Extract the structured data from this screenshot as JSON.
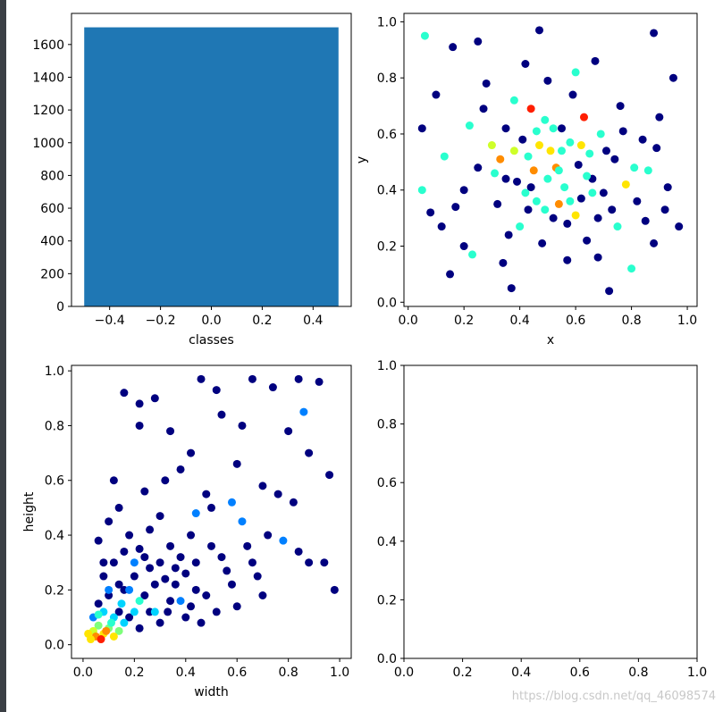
{
  "colors": {
    "bar": "#1f77b4",
    "scatter_palette": [
      "#00007f",
      "#0000ff",
      "#0080ff",
      "#00d4ff",
      "#29ffce",
      "#7dff7a",
      "#ceff29",
      "#ffe500",
      "#ff8c00",
      "#ff1e00",
      "#b20000"
    ]
  },
  "watermark": "https://blog.csdn.net/qq_46098574",
  "chart_data": [
    {
      "type": "bar",
      "categories": [
        0
      ],
      "values": [
        1705
      ],
      "xlabel": "classes",
      "ylabel": "",
      "xlim": [
        -0.55,
        0.55
      ],
      "ylim": [
        0,
        1790
      ],
      "xticks": [
        -0.4,
        -0.2,
        0.0,
        0.2,
        0.4
      ],
      "xtick_labels": [
        "−0.4",
        "−0.2",
        "0.0",
        "0.2",
        "0.4"
      ],
      "yticks": [
        0,
        200,
        400,
        600,
        800,
        1000,
        1200,
        1400,
        1600
      ],
      "ytick_labels": [
        "0",
        "200",
        "400",
        "600",
        "800",
        "1000",
        "1200",
        "1400",
        "1600"
      ],
      "grid": false
    },
    {
      "type": "scatter",
      "xlabel": "x",
      "ylabel": "y",
      "xlim": [
        -0.015,
        1.035
      ],
      "ylim": [
        -0.015,
        1.03
      ],
      "xticks": [
        0,
        0.2,
        0.4,
        0.6,
        0.8,
        1.0
      ],
      "xtick_labels": [
        "0.0",
        "0.2",
        "0.4",
        "0.6",
        "0.8",
        "1.0"
      ],
      "yticks": [
        0,
        0.2,
        0.4,
        0.6,
        0.8,
        1.0
      ],
      "ytick_labels": [
        "0.0",
        "0.2",
        "0.4",
        "0.6",
        "0.8",
        "1.0"
      ],
      "colormap": "jet",
      "points": [
        [
          0.06,
          0.95,
          4
        ],
        [
          0.16,
          0.91,
          0
        ],
        [
          0.25,
          0.93,
          0
        ],
        [
          0.47,
          0.97,
          0
        ],
        [
          0.88,
          0.96,
          0
        ],
        [
          0.05,
          0.62,
          0
        ],
        [
          0.05,
          0.4,
          4
        ],
        [
          0.08,
          0.32,
          0
        ],
        [
          0.12,
          0.27,
          0
        ],
        [
          0.15,
          0.1,
          0
        ],
        [
          0.2,
          0.2,
          0
        ],
        [
          0.2,
          0.4,
          0
        ],
        [
          0.22,
          0.63,
          4
        ],
        [
          0.25,
          0.48,
          0
        ],
        [
          0.28,
          0.78,
          0
        ],
        [
          0.3,
          0.56,
          6
        ],
        [
          0.32,
          0.35,
          0
        ],
        [
          0.33,
          0.51,
          8
        ],
        [
          0.34,
          0.14,
          0
        ],
        [
          0.35,
          0.62,
          0
        ],
        [
          0.37,
          0.05,
          0
        ],
        [
          0.38,
          0.72,
          4
        ],
        [
          0.39,
          0.43,
          0
        ],
        [
          0.4,
          0.27,
          4
        ],
        [
          0.41,
          0.58,
          0
        ],
        [
          0.42,
          0.85,
          0
        ],
        [
          0.43,
          0.33,
          0
        ],
        [
          0.44,
          0.69,
          9
        ],
        [
          0.45,
          0.47,
          8
        ],
        [
          0.46,
          0.36,
          4
        ],
        [
          0.47,
          0.56,
          7
        ],
        [
          0.48,
          0.21,
          0
        ],
        [
          0.49,
          0.65,
          4
        ],
        [
          0.5,
          0.44,
          4
        ],
        [
          0.5,
          0.79,
          0
        ],
        [
          0.51,
          0.54,
          7
        ],
        [
          0.52,
          0.3,
          0
        ],
        [
          0.53,
          0.48,
          8
        ],
        [
          0.54,
          0.35,
          8
        ],
        [
          0.55,
          0.62,
          0
        ],
        [
          0.56,
          0.41,
          4
        ],
        [
          0.57,
          0.15,
          0
        ],
        [
          0.58,
          0.57,
          4
        ],
        [
          0.59,
          0.74,
          0
        ],
        [
          0.6,
          0.31,
          7
        ],
        [
          0.61,
          0.49,
          0
        ],
        [
          0.62,
          0.37,
          0
        ],
        [
          0.63,
          0.66,
          9
        ],
        [
          0.64,
          0.22,
          0
        ],
        [
          0.65,
          0.53,
          4
        ],
        [
          0.66,
          0.44,
          0
        ],
        [
          0.67,
          0.86,
          0
        ],
        [
          0.68,
          0.3,
          0
        ],
        [
          0.69,
          0.6,
          4
        ],
        [
          0.7,
          0.39,
          0
        ],
        [
          0.72,
          0.04,
          0
        ],
        [
          0.74,
          0.51,
          0
        ],
        [
          0.75,
          0.27,
          4
        ],
        [
          0.76,
          0.7,
          0
        ],
        [
          0.78,
          0.42,
          7
        ],
        [
          0.8,
          0.12,
          4
        ],
        [
          0.82,
          0.36,
          0
        ],
        [
          0.84,
          0.58,
          0
        ],
        [
          0.86,
          0.47,
          4
        ],
        [
          0.88,
          0.21,
          0
        ],
        [
          0.9,
          0.66,
          0
        ],
        [
          0.92,
          0.33,
          0
        ],
        [
          0.95,
          0.8,
          0
        ],
        [
          0.97,
          0.27,
          0
        ],
        [
          0.1,
          0.74,
          0
        ],
        [
          0.13,
          0.52,
          4
        ],
        [
          0.17,
          0.34,
          0
        ],
        [
          0.23,
          0.17,
          4
        ],
        [
          0.27,
          0.69,
          0
        ],
        [
          0.31,
          0.46,
          4
        ],
        [
          0.36,
          0.24,
          0
        ],
        [
          0.44,
          0.41,
          0
        ],
        [
          0.52,
          0.62,
          4
        ],
        [
          0.57,
          0.28,
          0
        ],
        [
          0.6,
          0.82,
          4
        ],
        [
          0.64,
          0.45,
          4
        ],
        [
          0.68,
          0.16,
          0
        ],
        [
          0.71,
          0.54,
          0
        ],
        [
          0.73,
          0.33,
          0
        ],
        [
          0.77,
          0.61,
          0
        ],
        [
          0.81,
          0.48,
          4
        ],
        [
          0.85,
          0.29,
          0
        ],
        [
          0.89,
          0.55,
          0
        ],
        [
          0.93,
          0.41,
          0
        ],
        [
          0.38,
          0.54,
          6
        ],
        [
          0.42,
          0.39,
          4
        ],
        [
          0.46,
          0.61,
          4
        ],
        [
          0.54,
          0.47,
          4
        ],
        [
          0.58,
          0.36,
          4
        ],
        [
          0.62,
          0.56,
          7
        ],
        [
          0.49,
          0.33,
          4
        ],
        [
          0.43,
          0.52,
          4
        ],
        [
          0.55,
          0.54,
          4
        ],
        [
          0.35,
          0.44,
          0
        ],
        [
          0.66,
          0.39,
          4
        ]
      ]
    },
    {
      "type": "scatter",
      "xlabel": "width",
      "ylabel": "height",
      "xlim": [
        -0.045,
        1.045
      ],
      "ylim": [
        -0.05,
        1.02
      ],
      "xticks": [
        0,
        0.2,
        0.4,
        0.6,
        0.8,
        1.0
      ],
      "xtick_labels": [
        "0.0",
        "0.2",
        "0.4",
        "0.6",
        "0.8",
        "1.0"
      ],
      "yticks": [
        0,
        0.2,
        0.4,
        0.6,
        0.8,
        1.0
      ],
      "ytick_labels": [
        "0.0",
        "0.2",
        "0.4",
        "0.6",
        "0.8",
        "1.0"
      ],
      "colormap": "jet",
      "points": [
        [
          0.46,
          0.97,
          0
        ],
        [
          0.66,
          0.97,
          0
        ],
        [
          0.92,
          0.96,
          0
        ],
        [
          0.16,
          0.92,
          0
        ],
        [
          0.22,
          0.88,
          0
        ],
        [
          0.28,
          0.9,
          0
        ],
        [
          0.52,
          0.93,
          0
        ],
        [
          0.74,
          0.94,
          0
        ],
        [
          0.84,
          0.97,
          0
        ],
        [
          0.86,
          0.85,
          2
        ],
        [
          0.34,
          0.78,
          0
        ],
        [
          0.22,
          0.8,
          0
        ],
        [
          0.54,
          0.84,
          0
        ],
        [
          0.62,
          0.8,
          0
        ],
        [
          0.8,
          0.78,
          0
        ],
        [
          0.12,
          0.6,
          0
        ],
        [
          0.24,
          0.56,
          0
        ],
        [
          0.42,
          0.7,
          0
        ],
        [
          0.6,
          0.66,
          0
        ],
        [
          0.88,
          0.7,
          0
        ],
        [
          0.96,
          0.62,
          0
        ],
        [
          0.32,
          0.6,
          0
        ],
        [
          0.38,
          0.64,
          0
        ],
        [
          0.48,
          0.55,
          0
        ],
        [
          0.58,
          0.52,
          2
        ],
        [
          0.7,
          0.58,
          0
        ],
        [
          0.76,
          0.55,
          0
        ],
        [
          0.82,
          0.52,
          0
        ],
        [
          0.06,
          0.38,
          0
        ],
        [
          0.1,
          0.45,
          0
        ],
        [
          0.14,
          0.5,
          0
        ],
        [
          0.18,
          0.4,
          0
        ],
        [
          0.22,
          0.35,
          0
        ],
        [
          0.26,
          0.42,
          0
        ],
        [
          0.3,
          0.47,
          0
        ],
        [
          0.34,
          0.36,
          0
        ],
        [
          0.38,
          0.32,
          0
        ],
        [
          0.42,
          0.4,
          0
        ],
        [
          0.44,
          0.3,
          0
        ],
        [
          0.5,
          0.36,
          0
        ],
        [
          0.54,
          0.32,
          0
        ],
        [
          0.56,
          0.27,
          0
        ],
        [
          0.62,
          0.45,
          2
        ],
        [
          0.66,
          0.3,
          0
        ],
        [
          0.72,
          0.4,
          0
        ],
        [
          0.78,
          0.38,
          2
        ],
        [
          0.84,
          0.34,
          0
        ],
        [
          0.88,
          0.3,
          0
        ],
        [
          0.94,
          0.3,
          0
        ],
        [
          0.98,
          0.2,
          0
        ],
        [
          0.7,
          0.18,
          0
        ],
        [
          0.6,
          0.14,
          0
        ],
        [
          0.52,
          0.12,
          0
        ],
        [
          0.46,
          0.08,
          0
        ],
        [
          0.4,
          0.1,
          0
        ],
        [
          0.34,
          0.16,
          0
        ],
        [
          0.28,
          0.22,
          0
        ],
        [
          0.24,
          0.18,
          0
        ],
        [
          0.2,
          0.25,
          0
        ],
        [
          0.16,
          0.2,
          0
        ],
        [
          0.12,
          0.3,
          0
        ],
        [
          0.08,
          0.25,
          0
        ],
        [
          0.14,
          0.12,
          0
        ],
        [
          0.18,
          0.1,
          0
        ],
        [
          0.22,
          0.06,
          0
        ],
        [
          0.26,
          0.12,
          0
        ],
        [
          0.3,
          0.08,
          0
        ],
        [
          0.36,
          0.22,
          0
        ],
        [
          0.4,
          0.26,
          0
        ],
        [
          0.44,
          0.2,
          0
        ],
        [
          0.48,
          0.18,
          0
        ],
        [
          0.06,
          0.15,
          0
        ],
        [
          0.1,
          0.18,
          0
        ],
        [
          0.04,
          0.1,
          2
        ],
        [
          0.08,
          0.12,
          3
        ],
        [
          0.12,
          0.1,
          3
        ],
        [
          0.16,
          0.08,
          3
        ],
        [
          0.2,
          0.12,
          3
        ],
        [
          0.06,
          0.07,
          5
        ],
        [
          0.1,
          0.06,
          5
        ],
        [
          0.14,
          0.05,
          5
        ],
        [
          0.04,
          0.05,
          6
        ],
        [
          0.08,
          0.04,
          7
        ],
        [
          0.12,
          0.03,
          7
        ],
        [
          0.05,
          0.03,
          8
        ],
        [
          0.07,
          0.02,
          9
        ],
        [
          0.03,
          0.02,
          7
        ],
        [
          0.09,
          0.05,
          8
        ],
        [
          0.11,
          0.08,
          4
        ],
        [
          0.02,
          0.04,
          7
        ],
        [
          0.06,
          0.11,
          4
        ],
        [
          0.15,
          0.15,
          3
        ],
        [
          0.18,
          0.2,
          2
        ],
        [
          0.3,
          0.3,
          0
        ],
        [
          0.26,
          0.28,
          0
        ],
        [
          0.36,
          0.28,
          0
        ],
        [
          0.44,
          0.48,
          2
        ],
        [
          0.5,
          0.5,
          0
        ],
        [
          0.64,
          0.36,
          0
        ],
        [
          0.68,
          0.25,
          0
        ],
        [
          0.58,
          0.22,
          0
        ],
        [
          0.32,
          0.24,
          0
        ],
        [
          0.24,
          0.32,
          0
        ],
        [
          0.16,
          0.34,
          0
        ],
        [
          0.2,
          0.3,
          2
        ],
        [
          0.28,
          0.12,
          3
        ],
        [
          0.22,
          0.16,
          4
        ],
        [
          0.33,
          0.12,
          0
        ],
        [
          0.38,
          0.16,
          2
        ],
        [
          0.42,
          0.14,
          0
        ],
        [
          0.1,
          0.2,
          2
        ],
        [
          0.14,
          0.22,
          0
        ],
        [
          0.08,
          0.3,
          0
        ]
      ]
    },
    {
      "type": "scatter",
      "xlabel": "",
      "ylabel": "",
      "xlim": [
        0,
        1
      ],
      "ylim": [
        0,
        1
      ],
      "xticks": [
        0,
        0.2,
        0.4,
        0.6,
        0.8,
        1.0
      ],
      "xtick_labels": [
        "0.0",
        "0.2",
        "0.4",
        "0.6",
        "0.8",
        "1.0"
      ],
      "yticks": [
        0,
        0.2,
        0.4,
        0.6,
        0.8,
        1.0
      ],
      "ytick_labels": [
        "0.0",
        "0.2",
        "0.4",
        "0.6",
        "0.8",
        "1.0"
      ],
      "points": []
    }
  ]
}
